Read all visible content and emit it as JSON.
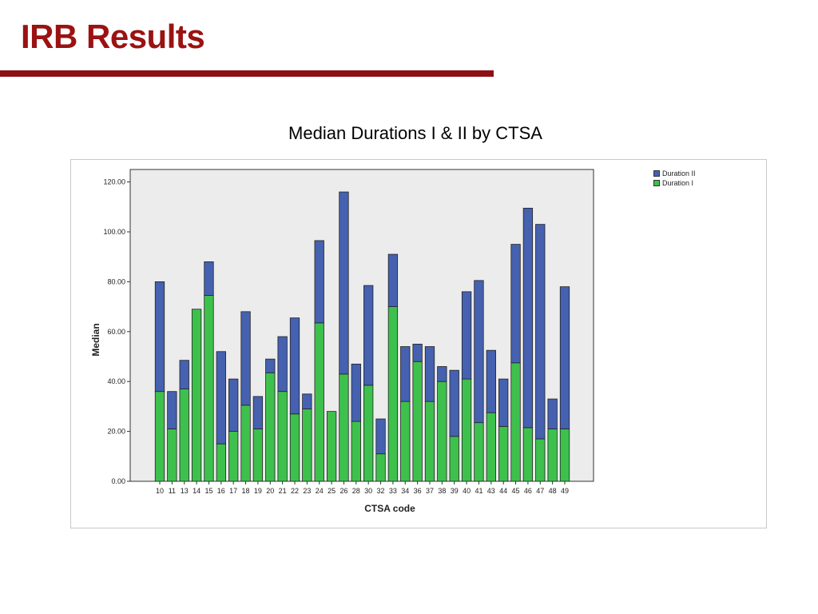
{
  "slide": {
    "title": "IRB Results"
  },
  "chart_heading": "Median Durations I & II by CTSA",
  "colors": {
    "title": "#9b1212",
    "rule": "#8e0f12",
    "duration_ii": "#4561b0",
    "duration_i": "#3ec04d",
    "plot_bg": "#ececec"
  },
  "legend": {
    "items": [
      {
        "label": "Duration II",
        "color": "#4561b0"
      },
      {
        "label": "Duration I",
        "color": "#3ec04d"
      }
    ]
  },
  "chart_data": {
    "type": "bar",
    "stacked": true,
    "title": "Median Durations I & II by CTSA",
    "xlabel": "CTSA code",
    "ylabel": "Median",
    "ylim": [
      0,
      125
    ],
    "yticks": [
      "0.00",
      "20.00",
      "40.00",
      "60.00",
      "80.00",
      "100.00",
      "120.00"
    ],
    "ytick_values": [
      0,
      20,
      40,
      60,
      80,
      100,
      120
    ],
    "grid": false,
    "legend_position": "top-right",
    "categories": [
      "10",
      "11",
      "13",
      "14",
      "15",
      "16",
      "17",
      "18",
      "19",
      "20",
      "21",
      "22",
      "23",
      "24",
      "25",
      "26",
      "28",
      "30",
      "32",
      "33",
      "34",
      "36",
      "37",
      "38",
      "39",
      "40",
      "41",
      "43",
      "44",
      "45",
      "46",
      "47",
      "48",
      "49"
    ],
    "series": [
      {
        "name": "Duration I",
        "values": [
          36,
          21,
          37,
          69,
          74.5,
          15,
          20,
          30.5,
          21,
          43.5,
          36,
          27,
          29,
          63.5,
          28,
          43,
          24,
          38.5,
          11,
          70,
          32,
          48,
          32,
          40,
          18,
          41,
          23.5,
          27.5,
          22,
          47.5,
          21.5,
          17,
          21,
          21
        ]
      },
      {
        "name": "Duration II",
        "values": [
          44,
          15,
          11.5,
          0,
          13.5,
          37,
          21,
          37.5,
          13,
          5.5,
          22,
          38.5,
          6,
          33,
          0,
          73,
          23,
          40,
          14,
          21,
          22,
          7,
          22,
          6,
          26.5,
          35,
          57,
          25,
          19,
          47.5,
          88,
          86,
          12,
          57
        ]
      }
    ]
  }
}
